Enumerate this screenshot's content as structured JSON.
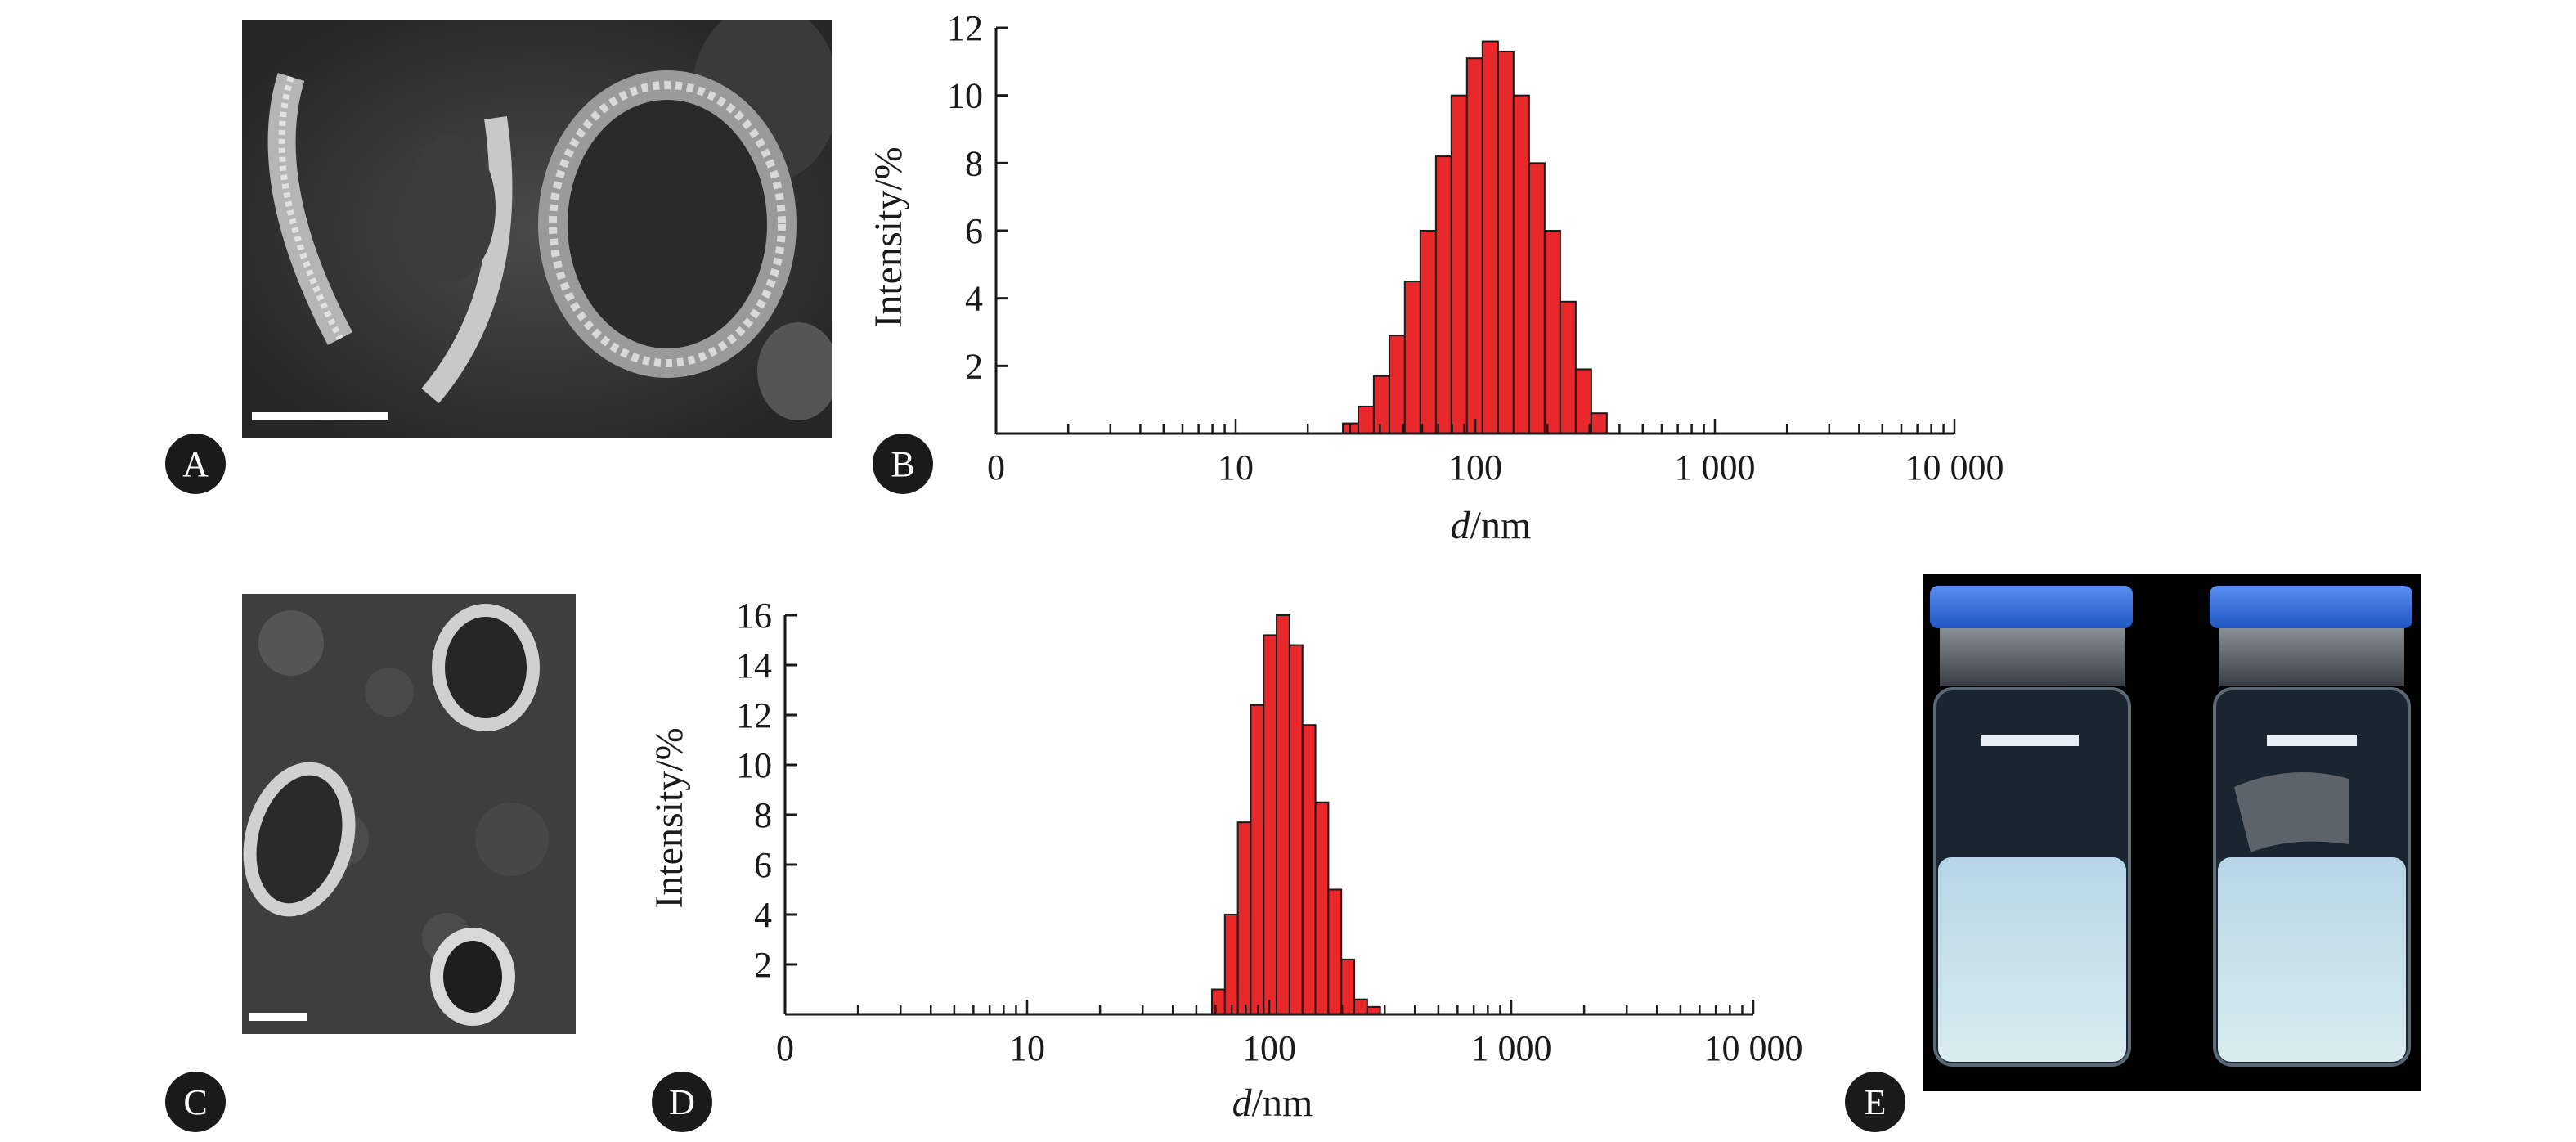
{
  "panels": {
    "A": {
      "label": "A"
    },
    "B": {
      "label": "B"
    },
    "C": {
      "label": "C"
    },
    "D": {
      "label": "D"
    },
    "E": {
      "label": "E"
    }
  },
  "colors": {
    "bar_fill": "#e8282b",
    "bar_stroke": "#1a1a1a",
    "cap_blue": "#2d6fd8"
  },
  "chart_data": [
    {
      "panel": "B",
      "type": "bar",
      "xscale": "log",
      "xlim": [
        1,
        10000
      ],
      "ylim": [
        0,
        12
      ],
      "xlabel": "d/nm",
      "ylabel": "Intensity/%",
      "xtick_labels": [
        "0",
        "10",
        "100",
        "1 000",
        "10 000"
      ],
      "ytick_labels": [
        "2",
        "4",
        "6",
        "8",
        "10",
        "12"
      ],
      "ytick_values": [
        2,
        4,
        6,
        8,
        10,
        12
      ],
      "bin_edges": [
        28,
        32.5,
        37.7,
        43.8,
        50.8,
        59,
        68.5,
        79.5,
        92.3,
        107.2,
        124.5,
        144.5,
        167.8,
        194.8,
        226.2,
        262.6,
        304.9,
        354
      ],
      "values": [
        0.3,
        0.8,
        1.7,
        2.9,
        4.5,
        6.0,
        8.2,
        10.0,
        11.1,
        11.6,
        11.3,
        10.0,
        8.0,
        6.0,
        3.9,
        1.9,
        0.6
      ]
    },
    {
      "panel": "D",
      "type": "bar",
      "xscale": "log",
      "xlim": [
        1,
        10000
      ],
      "ylim": [
        0,
        16
      ],
      "xlabel": "d/nm",
      "ylabel": "Intensity/%",
      "xtick_labels": [
        "0",
        "10",
        "100",
        "1 000",
        "10 000"
      ],
      "ytick_labels": [
        "2",
        "4",
        "6",
        "8",
        "10",
        "12",
        "14",
        "16"
      ],
      "ytick_values": [
        2,
        4,
        6,
        8,
        10,
        12,
        14,
        16
      ],
      "bin_edges": [
        58,
        65.6,
        74.2,
        83.9,
        94.9,
        107.3,
        121.4,
        137.3,
        155.3,
        175.6,
        198.6,
        224.6,
        254,
        287.3
      ],
      "values": [
        1.0,
        4.0,
        7.7,
        12.4,
        15.2,
        16.0,
        14.8,
        11.6,
        8.5,
        5.0,
        2.2,
        0.6,
        0.3
      ]
    }
  ]
}
